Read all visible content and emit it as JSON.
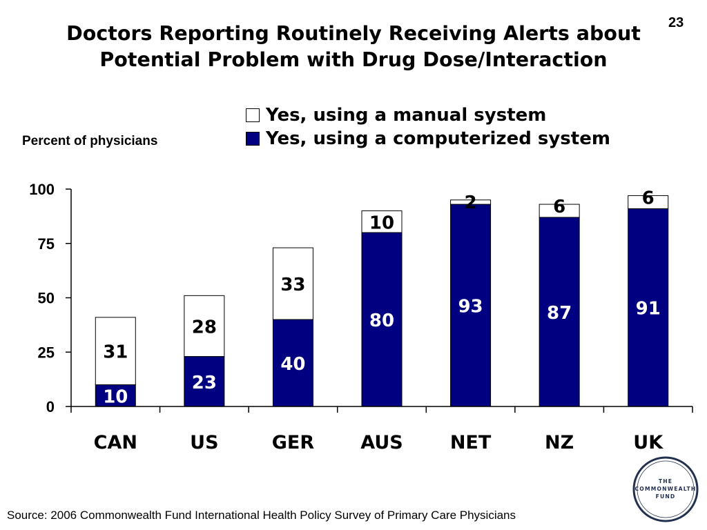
{
  "slide_number": "23",
  "title_lines": [
    "Doctors Reporting Routinely Receiving Alerts about",
    "Potential Problem with Drug Dose/Interaction"
  ],
  "source_note": "Source: 2006 Commonwealth Fund International Health Policy Survey of Primary Care Physicians",
  "logo": {
    "lines": [
      "THE",
      "COMMONWEALTH",
      "FUND"
    ],
    "color": "#22304f"
  },
  "chart_data": {
    "type": "bar",
    "stacked": true,
    "title": "Doctors Reporting Routinely Receiving Alerts about Potential Problem with Drug Dose/Interaction",
    "ylabel": "Percent of physicians",
    "xlabel": "",
    "ylim": [
      0,
      100
    ],
    "yticks": [
      0,
      25,
      50,
      75,
      100
    ],
    "categories": [
      "CAN",
      "US",
      "GER",
      "AUS",
      "NET",
      "NZ",
      "UK"
    ],
    "series": [
      {
        "name": "Yes, using a computerized system",
        "values": [
          10,
          23,
          40,
          80,
          93,
          87,
          91
        ],
        "color": "#000080",
        "label_color": "#ffffff"
      },
      {
        "name": "Yes, using a manual system",
        "values": [
          31,
          28,
          33,
          10,
          2,
          6,
          6
        ],
        "color": "#ffffff",
        "label_color": "#000000"
      }
    ],
    "legend_order": [
      "Yes, using a manual system",
      "Yes, using a computerized system"
    ],
    "legend_position": "top",
    "grid": false
  }
}
